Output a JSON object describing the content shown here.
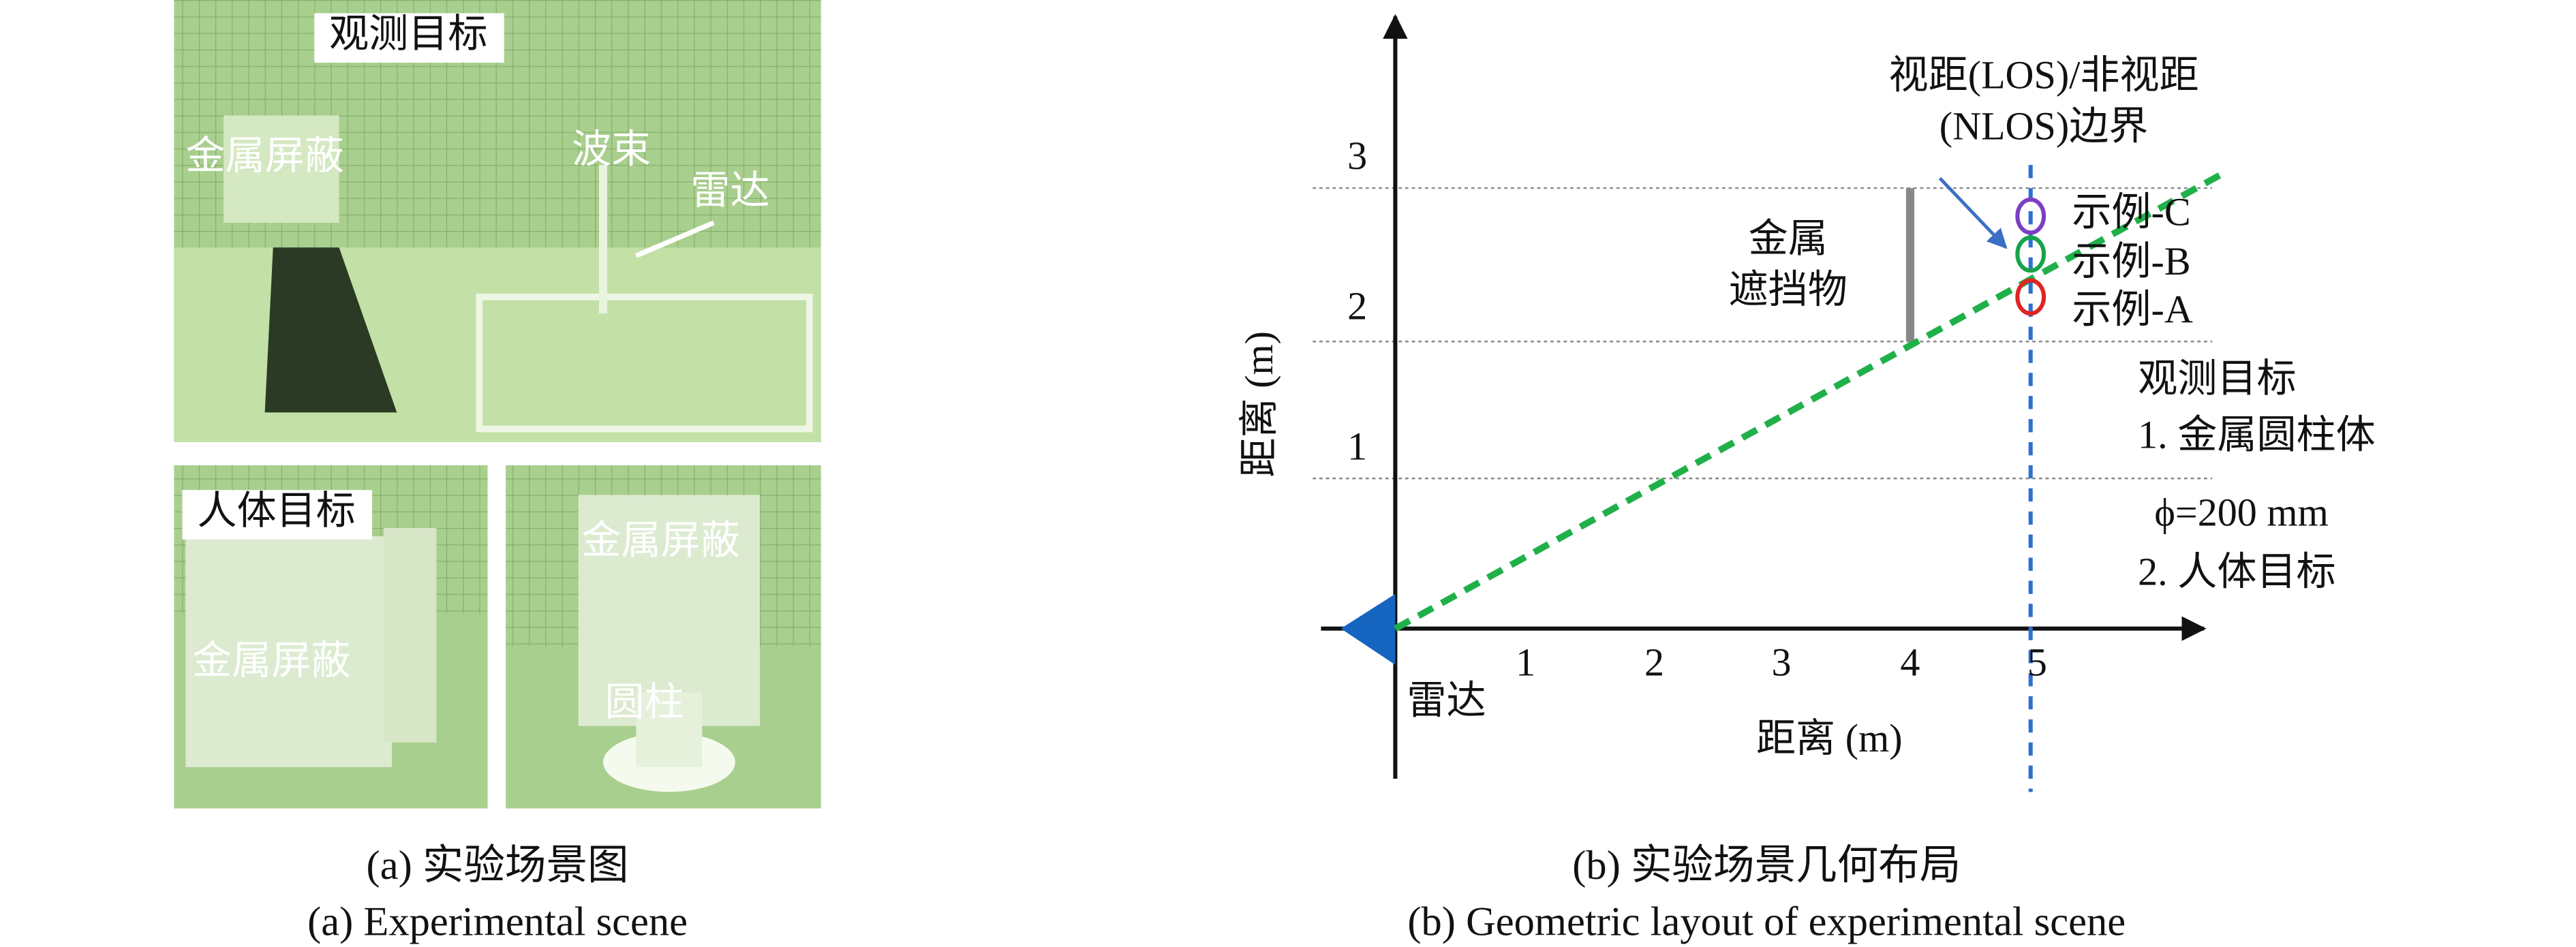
{
  "panel_a": {
    "photo_labels": {
      "top_target": "观测目标",
      "top_shield": "金属屏蔽",
      "beam": "波束",
      "radar": "雷达",
      "human_target": "人体目标",
      "left_shield": "金属屏蔽",
      "right_shield": "金属屏蔽",
      "cylinder": "圆柱"
    },
    "caption_cn": "(a) 实验场景图",
    "caption_en": "(a) Experimental scene"
  },
  "panel_b": {
    "x_ticks": [
      "1",
      "2",
      "3",
      "4",
      "5"
    ],
    "y_ticks": [
      "1",
      "2",
      "3"
    ],
    "x_label": "距离 (m)",
    "y_label": "距离 (m)",
    "radar": "雷达",
    "obstacle": [
      "金属",
      "遮挡物"
    ],
    "boundary": [
      "视距(LOS)/非视距",
      "(NLOS)边界"
    ],
    "examples": [
      "示例-C",
      "示例-B",
      "示例-A"
    ],
    "targets": [
      "观测目标",
      "1. 金属圆柱体",
      "ϕ=200 mm",
      "2. 人体目标"
    ],
    "caption_cn": "(b) 实验场景几何布局",
    "caption_en": "(b) Geometric layout of experimental scene"
  }
}
